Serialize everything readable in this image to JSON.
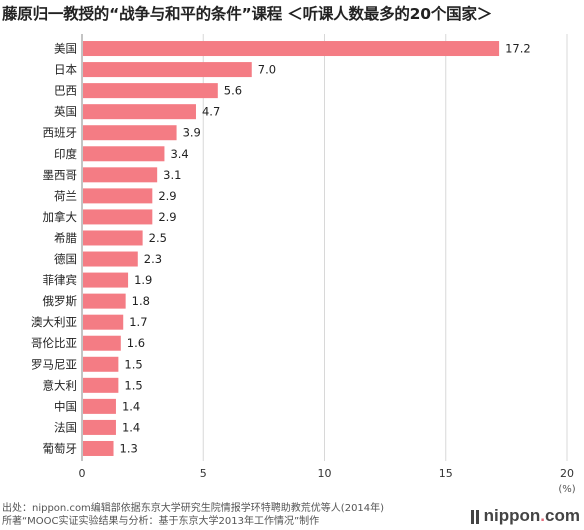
{
  "title": {
    "main": "藤原归一教授的“战争与和平的条件”课程",
    "sub": "＜听课人数最多的20个国家＞"
  },
  "chart_data": {
    "type": "bar",
    "orientation": "horizontal",
    "categories": [
      "美国",
      "日本",
      "巴西",
      "英国",
      "西班牙",
      "印度",
      "墨西哥",
      "荷兰",
      "加拿大",
      "希腊",
      "德国",
      "菲律宾",
      "俄罗斯",
      "澳大利亚",
      "哥伦比亚",
      "罗马尼亚",
      "意大利",
      "中国",
      "法国",
      "葡萄牙"
    ],
    "values": [
      17.2,
      7.0,
      5.6,
      4.7,
      3.9,
      3.4,
      3.1,
      2.9,
      2.9,
      2.5,
      2.3,
      1.9,
      1.8,
      1.7,
      1.6,
      1.5,
      1.5,
      1.4,
      1.4,
      1.3
    ],
    "value_labels": [
      "17.2",
      "7.0",
      "5.6",
      "4.7",
      "3.9",
      "3.4",
      "3.1",
      "2.9",
      "2.9",
      "2.5",
      "2.3",
      "1.9",
      "1.8",
      "1.7",
      "1.6",
      "1.5",
      "1.5",
      "1.4",
      "1.4",
      "1.3"
    ],
    "xlim": [
      0,
      20
    ],
    "xticks": [
      "0",
      "5",
      "10",
      "15",
      "20"
    ],
    "unit_label": "(%)",
    "bar_color": "#f47c84",
    "grid": true
  },
  "footer": {
    "line1": "出处：nippon.com编辑部依据东京大学研究生院情报学环特聘助教荒优等人(2014年)",
    "line2": "所著“MOOC实证实验结果与分析：基于东京大学2013年工作情况”制作"
  },
  "brand": {
    "name": "nippon",
    "dot": ".",
    "suffix": "com"
  }
}
